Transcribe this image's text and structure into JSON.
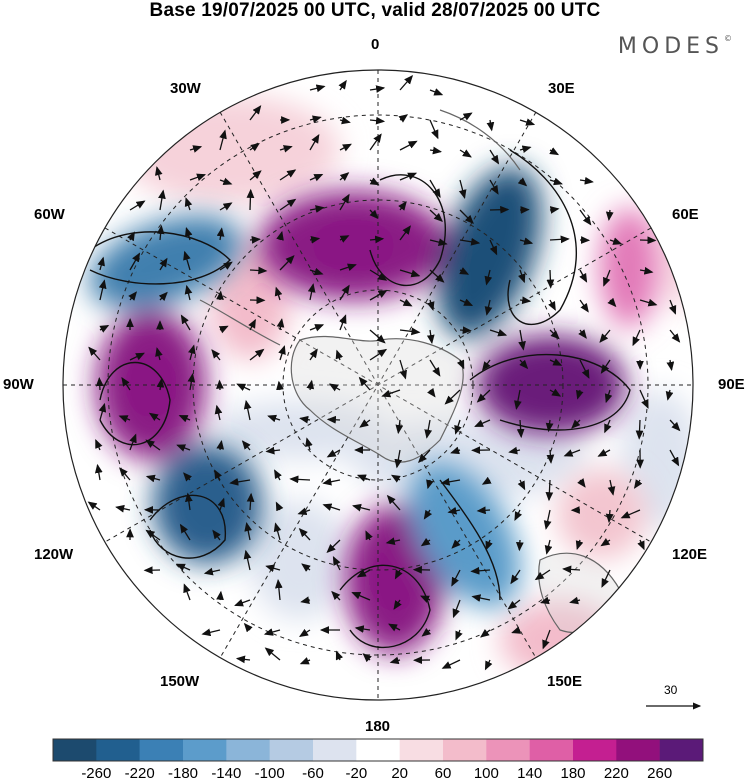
{
  "title": "Base 19/07/2025 00 UTC, valid 28/07/2025 00 UTC",
  "brand": "MODES",
  "brand_mark": "©",
  "map": {
    "projection": "south-polar-stereographic",
    "longitude_labels": {
      "top": "0",
      "right_top": "30E",
      "right_upper": "60E",
      "right": "90E",
      "right_lower": "120E",
      "right_bottom": "150E",
      "bottom": "180",
      "left_bottom": "150W",
      "left_lower": "120W",
      "left": "90W",
      "left_upper": "60W",
      "left_top": "30W"
    },
    "vector_scale_label": "30",
    "anomaly_centers": [
      {
        "name": "positive-south-atlantic",
        "lon": -10,
        "value": 240,
        "color": "#8a1a84"
      },
      {
        "name": "negative-30e",
        "lon": 40,
        "value": -260,
        "color": "#1f4f78"
      },
      {
        "name": "positive-60e",
        "lon": 65,
        "value": 140,
        "color": "#e279b8"
      },
      {
        "name": "positive-90e",
        "lon": 90,
        "value": 260,
        "color": "#6a1b7a"
      },
      {
        "name": "negative-60w",
        "lon": -60,
        "value": -180,
        "color": "#3f7fae"
      },
      {
        "name": "positive-90w",
        "lon": -90,
        "value": 240,
        "color": "#8a1a84"
      },
      {
        "name": "negative-120w",
        "lon": -125,
        "value": -240,
        "color": "#2b5e8d"
      },
      {
        "name": "positive-180",
        "lon": 175,
        "value": 240,
        "color": "#8a1a84"
      },
      {
        "name": "negative-150e",
        "lon": 150,
        "value": -140,
        "color": "#5a9bc9"
      },
      {
        "name": "positive-120e",
        "lon": 120,
        "value": 60,
        "color": "#f3c5cf"
      }
    ]
  },
  "colorbar": {
    "colors": [
      "#1c4a6e",
      "#215f8f",
      "#3b80b5",
      "#5c9ccb",
      "#8bb5d9",
      "#b5cbe3",
      "#dde3ef",
      "#ffffff",
      "#f8dde3",
      "#f3bccb",
      "#ec93b9",
      "#df5fa6",
      "#c41f91",
      "#92107c",
      "#5b1a78"
    ],
    "ticks": [
      "-260",
      "-220",
      "-180",
      "-140",
      "-100",
      "-60",
      "-20",
      "20",
      "60",
      "100",
      "140",
      "180",
      "220",
      "260"
    ]
  }
}
